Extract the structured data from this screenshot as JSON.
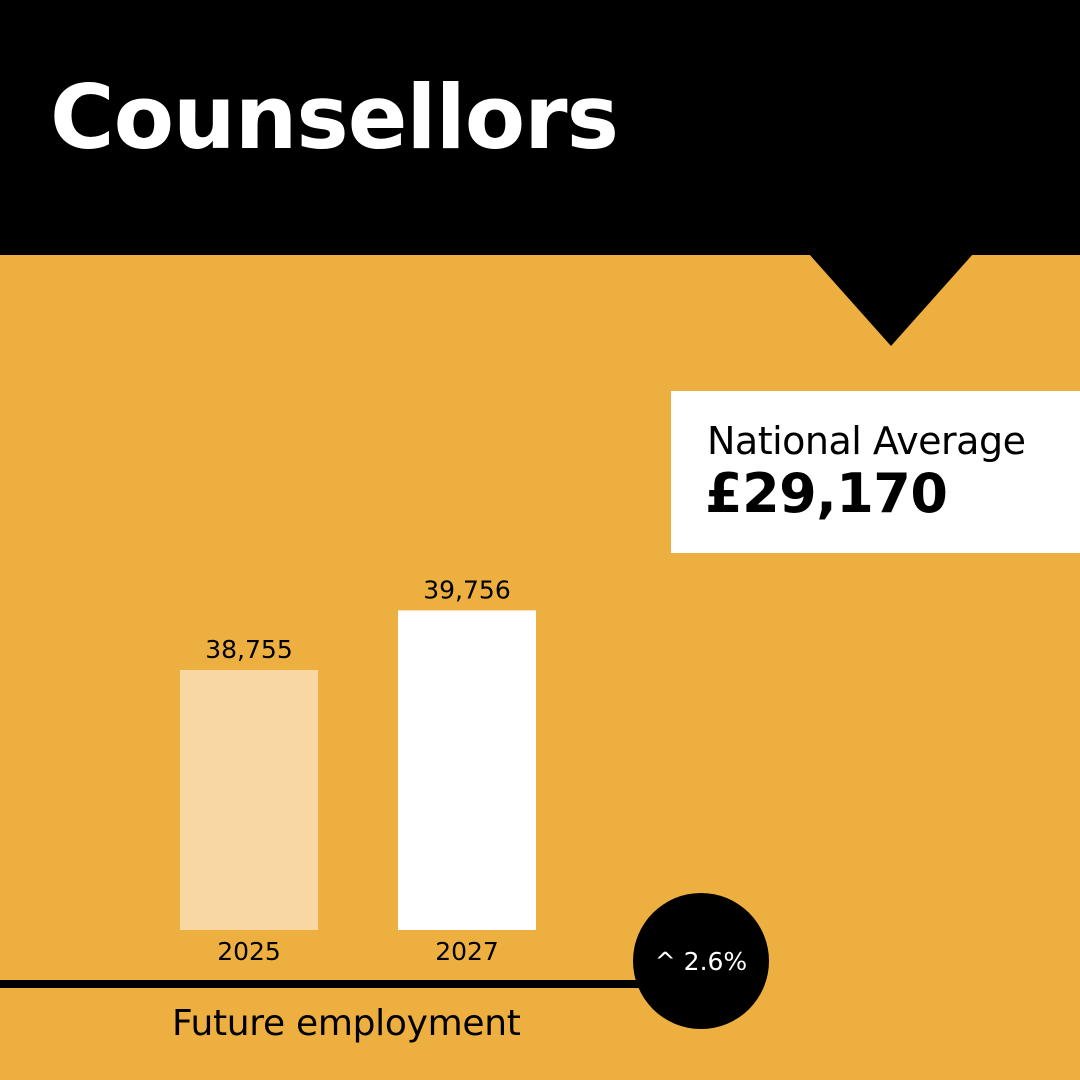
{
  "header": {
    "title": "Counsellors"
  },
  "national_average": {
    "label": "National Average",
    "value": "£29,170"
  },
  "chart_data": {
    "type": "bar",
    "title": "",
    "xlabel": "Future employment",
    "ylabel": "",
    "categories": [
      "2025",
      "2027"
    ],
    "values": [
      38755,
      39756
    ],
    "value_labels": [
      "38,755",
      "39,756"
    ],
    "bar_colors": [
      "#F9D7A2",
      "#FFFFFF"
    ],
    "growth_label": "^ 2.6%"
  },
  "colors": {
    "background": "#EDAF3F",
    "header": "#000000",
    "panel": "#FFFFFF"
  }
}
